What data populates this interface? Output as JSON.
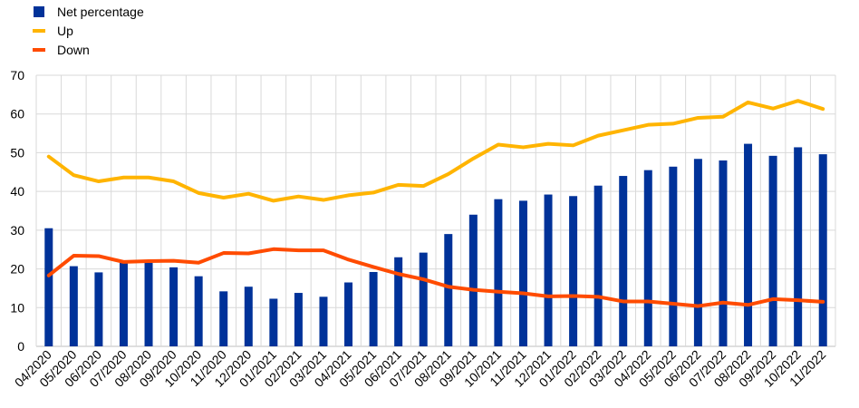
{
  "chart_data": {
    "type": "bar",
    "categories": [
      "04/2020",
      "05/2020",
      "06/2020",
      "07/2020",
      "08/2020",
      "09/2020",
      "10/2020",
      "11/2020",
      "12/2020",
      "01/2021",
      "02/2021",
      "03/2021",
      "04/2021",
      "05/2021",
      "06/2021",
      "07/2021",
      "08/2021",
      "09/2021",
      "10/2021",
      "11/2021",
      "12/2021",
      "01/2022",
      "02/2022",
      "03/2022",
      "04/2022",
      "05/2022",
      "06/2022",
      "07/2022",
      "08/2022",
      "09/2022",
      "10/2022",
      "11/2022"
    ],
    "series": [
      {
        "name": "Net percentage",
        "kind": "bar",
        "color": "#003299",
        "values": [
          30.5,
          20.7,
          19.1,
          21.7,
          21.6,
          20.4,
          18.1,
          14.2,
          15.4,
          12.3,
          13.8,
          12.8,
          16.5,
          19.2,
          23.0,
          24.2,
          29.0,
          34.0,
          38.0,
          37.6,
          39.2,
          38.8,
          41.5,
          44.0,
          45.5,
          46.4,
          48.4,
          48.0,
          52.3,
          49.2,
          51.4,
          49.6
        ]
      },
      {
        "name": "Up",
        "kind": "line",
        "color": "#FFB400",
        "values": [
          49.0,
          44.2,
          42.6,
          43.6,
          43.6,
          42.6,
          39.6,
          38.4,
          39.4,
          37.6,
          38.7,
          37.8,
          39.0,
          39.7,
          41.7,
          41.4,
          44.5,
          48.5,
          52.1,
          51.4,
          52.3,
          51.9,
          54.4,
          55.8,
          57.2,
          57.5,
          59.0,
          59.3,
          63.0,
          61.4,
          63.4,
          61.3
        ]
      },
      {
        "name": "Down",
        "kind": "line",
        "color": "#FF4B00",
        "values": [
          18.3,
          23.4,
          23.3,
          21.8,
          22.0,
          22.1,
          21.6,
          24.1,
          24.0,
          25.1,
          24.8,
          24.8,
          22.4,
          20.5,
          18.7,
          17.3,
          15.4,
          14.6,
          14.1,
          13.7,
          12.9,
          13.0,
          12.8,
          11.6,
          11.6,
          11.0,
          10.4,
          11.3,
          10.7,
          12.2,
          11.9,
          11.5
        ]
      }
    ],
    "ylim": [
      0,
      70
    ],
    "yticks": [
      "0",
      "10",
      "20",
      "30",
      "40",
      "50",
      "60",
      "70"
    ],
    "grid": true,
    "legend_position": "top-left",
    "title": "",
    "xlabel": "",
    "ylabel": ""
  }
}
